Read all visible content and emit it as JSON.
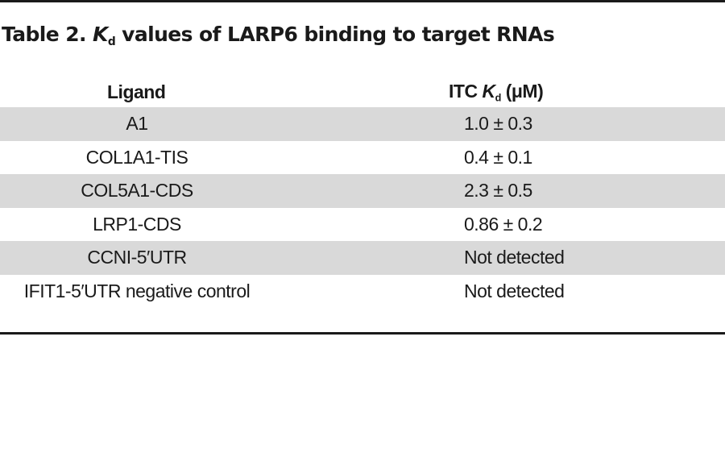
{
  "caption": {
    "label": "Table 2.",
    "symbol": "K",
    "subscript": "d",
    "text": "values of LARP6 binding to target RNAs"
  },
  "table": {
    "headers": {
      "ligand": "Ligand",
      "kd_prefix": "ITC",
      "kd_symbol": "K",
      "kd_subscript": "d",
      "kd_unit": "(μM)"
    },
    "rows": [
      {
        "ligand": "A1",
        "kd": "1.0 ± 0.3"
      },
      {
        "ligand": "COL1A1-TIS",
        "kd": "0.4 ± 0.1"
      },
      {
        "ligand": "COL5A1-CDS",
        "kd": "2.3 ± 0.5"
      },
      {
        "ligand": "LRP1-CDS",
        "kd": "0.86 ± 0.2"
      },
      {
        "ligand": "CCNI-5′UTR",
        "kd": "Not detected"
      },
      {
        "ligand": "IFIT1-5′UTR negative control",
        "kd": "Not detected"
      }
    ]
  },
  "colors": {
    "rule": "#1a1a1a",
    "row_shade": "#d9d9d9",
    "text": "#1a1a1a"
  }
}
